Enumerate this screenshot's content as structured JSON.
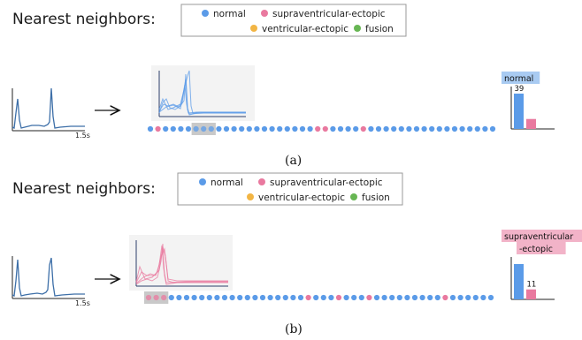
{
  "colors": {
    "normal": "#5b9be8",
    "supraventricular": "#e9799f",
    "ventricular": "#f2b544",
    "fusion": "#67b653",
    "signal_blue": "#3d6fa8",
    "signal_dark": "#2d3f6b",
    "inset_bg": "#f3f3f3",
    "highlight_bg": "#c9c9c9"
  },
  "legend": [
    {
      "label": "normal",
      "color_key": "normal"
    },
    {
      "label": "supraventricular-ectopic",
      "color_key": "supraventricular"
    },
    {
      "label": "ventricular-ectopic",
      "color_key": "ventricular"
    },
    {
      "label": "fusion",
      "color_key": "fusion"
    }
  ],
  "panels": [
    {
      "id": "a",
      "heading": "Nearest neighbors:",
      "axis_label": "1.5s",
      "arrow": "→",
      "caption": "(a)",
      "inset_color_key": "normal",
      "highlight_start": 6,
      "highlight_count": 3,
      "dots": "nsnnnnnnnnnnnnnnnnnnnnssnnnnsnnnnnnnnnnnnnnnnn",
      "bar": {
        "label_lines": [
          "normal"
        ],
        "value": 39,
        "label_color_key": "normal",
        "bars": [
          {
            "color_key": "normal",
            "value": 39
          },
          {
            "color_key": "supraventricular",
            "value": 11
          }
        ]
      }
    },
    {
      "id": "b",
      "heading": "Nearest neighbors:",
      "axis_label": "1.5s",
      "arrow": "→",
      "caption": "(b)",
      "inset_color_key": "supraventricular",
      "highlight_start": 0,
      "highlight_count": 3,
      "dots": "sssnnnnnnnnnnnnnnnnnnsnnnsnnnsnnnnnnnnnsnnnnnn",
      "bar": {
        "label_lines": [
          "supraventricular",
          "-ectopic"
        ],
        "value": 11,
        "label_color_key": "supraventricular",
        "bars": [
          {
            "color_key": "normal",
            "value": 39
          },
          {
            "color_key": "supraventricular",
            "value": 11
          }
        ]
      }
    }
  ]
}
